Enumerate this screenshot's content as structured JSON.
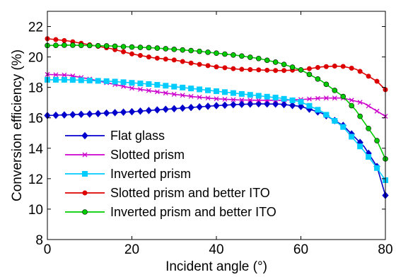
{
  "chart_data": {
    "type": "line",
    "title": "",
    "xlabel": "Incident angle (°)",
    "ylabel": "Conversion efficiency (%)",
    "xlim": [
      0,
      80
    ],
    "ylim": [
      8,
      23
    ],
    "xticks": [
      0,
      20,
      40,
      60,
      80
    ],
    "yticks": [
      8,
      10,
      12,
      14,
      16,
      18,
      20,
      22
    ],
    "grid": false,
    "legend_position": "bottom-left",
    "series": [
      {
        "name": "Flat glass",
        "color": "#0000cc",
        "marker": "diamond",
        "x": [
          0,
          10,
          20,
          30,
          40,
          45,
          50,
          55,
          60,
          65,
          70,
          75,
          78,
          80
        ],
        "y": [
          16.15,
          16.25,
          16.4,
          16.6,
          16.8,
          16.88,
          16.92,
          16.9,
          16.75,
          16.3,
          15.5,
          14.1,
          12.8,
          10.9
        ]
      },
      {
        "name": "Slotted prism",
        "color": "#cc00cc",
        "marker": "x",
        "x": [
          0,
          5,
          10,
          15,
          20,
          25,
          30,
          35,
          40,
          45,
          50,
          55,
          60,
          65,
          70,
          75,
          80
        ],
        "y": [
          18.85,
          18.8,
          18.55,
          18.25,
          17.95,
          17.75,
          17.55,
          17.38,
          17.25,
          17.18,
          17.15,
          17.15,
          17.2,
          17.3,
          17.3,
          16.95,
          16.1
        ]
      },
      {
        "name": "Inverted prism",
        "color": "#00ccff",
        "marker": "square",
        "x": [
          0,
          5,
          10,
          15,
          20,
          25,
          30,
          35,
          40,
          45,
          50,
          55,
          60,
          65,
          70,
          75,
          78,
          80
        ],
        "y": [
          18.5,
          18.5,
          18.45,
          18.4,
          18.3,
          18.2,
          18.05,
          17.9,
          17.75,
          17.6,
          17.45,
          17.3,
          17.05,
          16.4,
          15.4,
          13.8,
          12.7,
          11.9
        ]
      },
      {
        "name": "Slotted prism and better ITO",
        "color": "#dd0000",
        "marker": "dot",
        "x": [
          0,
          5,
          10,
          15,
          20,
          25,
          30,
          35,
          40,
          45,
          50,
          55,
          60,
          65,
          68,
          70,
          73,
          75,
          78,
          80
        ],
        "y": [
          21.2,
          21.05,
          20.8,
          20.55,
          20.2,
          19.95,
          19.8,
          19.55,
          19.35,
          19.2,
          19.15,
          19.1,
          19.15,
          19.35,
          19.4,
          19.38,
          19.2,
          18.9,
          18.4,
          17.85
        ]
      },
      {
        "name": "Inverted prism and better ITO",
        "color": "#00cc00",
        "marker": "circle",
        "x": [
          0,
          5,
          10,
          15,
          20,
          25,
          30,
          35,
          40,
          45,
          50,
          55,
          60,
          65,
          70,
          73,
          75,
          78,
          80
        ],
        "y": [
          20.75,
          20.78,
          20.75,
          20.72,
          20.65,
          20.6,
          20.5,
          20.4,
          20.25,
          20.1,
          19.9,
          19.6,
          19.15,
          18.4,
          17.4,
          16.5,
          15.7,
          14.5,
          13.3
        ]
      }
    ]
  }
}
